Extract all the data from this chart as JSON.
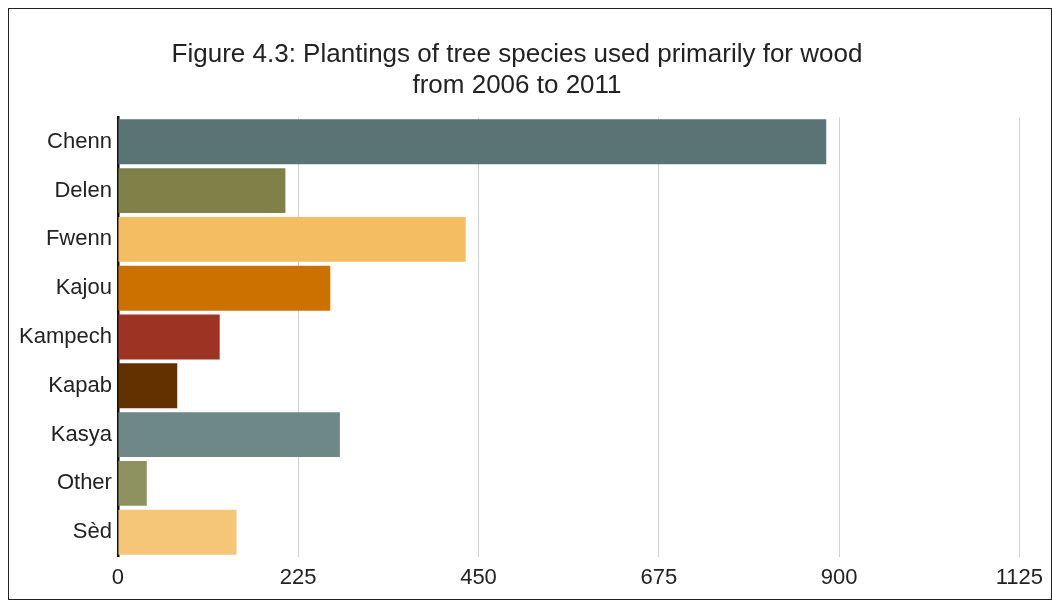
{
  "chart_data": {
    "type": "bar",
    "orientation": "horizontal",
    "title": "Figure 4.3: Plantings of tree species used primarily for wood from 2006 to 2011",
    "categories": [
      "Chenn",
      "Delen",
      "Fwenn",
      "Kajou",
      "Kampech",
      "Kapab",
      "Kasya",
      "Other",
      "Sèd"
    ],
    "values": [
      884,
      209,
      434,
      265,
      127,
      74,
      277,
      36,
      148
    ],
    "colors": [
      "#5a7374",
      "#7f8148",
      "#f4bd62",
      "#cc7000",
      "#9c3323",
      "#633100",
      "#6e8787",
      "#8e9160",
      "#f5c678"
    ],
    "xlim": [
      0,
      1125
    ],
    "xticks": [
      0,
      225,
      450,
      675,
      900,
      1125
    ],
    "grid": "x",
    "legend": false
  }
}
